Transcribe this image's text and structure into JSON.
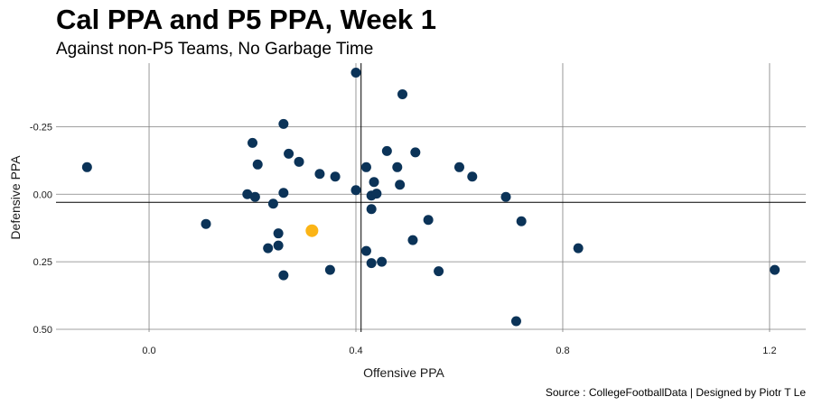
{
  "chart_data": {
    "type": "scatter",
    "title": "Cal PPA and P5 PPA, Week 1",
    "subtitle": "Against non-P5 Teams, No Garbage Time",
    "caption": "Source : CollegeFootballData | Designed by Piotr T Le",
    "xlabel": "Offensive PPA",
    "ylabel": "Defensive PPA",
    "xlim": [
      -0.18,
      1.27
    ],
    "ylim": [
      0.51,
      -0.485
    ],
    "y_reversed": true,
    "x_ticks": [
      0.0,
      0.4,
      0.8,
      1.2
    ],
    "x_tick_labels": [
      "0.0",
      "0.4",
      "0.8",
      "1.2"
    ],
    "y_ticks": [
      -0.25,
      0.0,
      0.25,
      0.5
    ],
    "y_tick_labels": [
      "-0.25",
      "0.00",
      "0.25",
      "0.50"
    ],
    "reference_lines": {
      "x_mean": 0.41,
      "y_mean": 0.03
    },
    "colors": {
      "p5": "#0b3358",
      "cal": "#fbb416",
      "grid": "#808080",
      "ref": "#000000"
    },
    "series": [
      {
        "name": "P5",
        "x": [
          -0.12,
          0.11,
          0.19,
          0.2,
          0.205,
          0.21,
          0.23,
          0.24,
          0.25,
          0.25,
          0.26,
          0.26,
          0.26,
          0.27,
          0.29,
          0.33,
          0.35,
          0.36,
          0.4,
          0.4,
          0.42,
          0.42,
          0.43,
          0.43,
          0.43,
          0.435,
          0.44,
          0.45,
          0.46,
          0.48,
          0.485,
          0.49,
          0.51,
          0.515,
          0.54,
          0.56,
          0.6,
          0.625,
          0.69,
          0.71,
          0.72,
          0.83,
          1.21
        ],
        "y": [
          -0.1,
          0.11,
          0.0,
          -0.19,
          0.01,
          -0.11,
          0.2,
          0.035,
          0.145,
          0.19,
          -0.26,
          -0.005,
          0.3,
          -0.15,
          -0.12,
          -0.075,
          0.28,
          -0.065,
          -0.45,
          -0.015,
          -0.1,
          0.21,
          0.255,
          0.005,
          0.055,
          -0.045,
          -0.002,
          0.25,
          -0.16,
          -0.1,
          -0.035,
          -0.37,
          0.17,
          -0.155,
          0.095,
          0.285,
          -0.1,
          -0.065,
          0.01,
          0.47,
          0.1,
          0.2,
          0.28
        ]
      },
      {
        "name": "Cal",
        "x": [
          0.315
        ],
        "y": [
          0.135
        ]
      }
    ]
  }
}
